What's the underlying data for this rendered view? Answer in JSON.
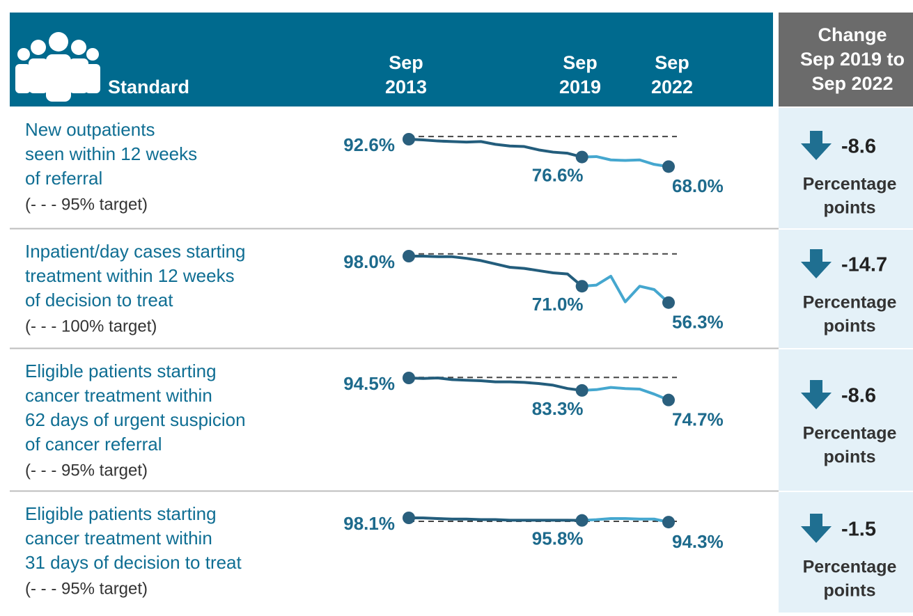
{
  "header": {
    "standard": "Standard",
    "columns": [
      {
        "month": "Sep",
        "year": "2013"
      },
      {
        "month": "Sep",
        "year": "2019"
      },
      {
        "month": "Sep",
        "year": "2022"
      }
    ],
    "change": [
      "Change",
      "Sep 2019 to",
      "Sep 2022"
    ]
  },
  "rows": [
    {
      "label": [
        "New outpatients",
        "seen within 12 weeks",
        "of referral"
      ],
      "target_note": "(- - - 95% target)",
      "change": -8.6,
      "change_unit": [
        "Percentage",
        "points"
      ],
      "chart_data": {
        "type": "line",
        "target": 95,
        "series": [
          {
            "color": "#235d7c",
            "values": [
              92.6,
              92,
              91,
              90.5,
              90,
              90.5,
              88,
              86.5,
              86,
              83,
              81,
              80,
              76.6,
              null,
              null,
              null,
              null,
              null,
              null
            ],
            "value_labels": [
              "92.6%",
              null,
              null,
              null,
              null,
              null,
              null,
              null,
              null,
              null,
              null,
              null,
              "76.6%",
              null,
              null,
              null,
              null,
              null,
              null
            ]
          },
          {
            "color": "#45a7cf",
            "values": [
              null,
              null,
              null,
              null,
              null,
              null,
              null,
              null,
              null,
              null,
              null,
              null,
              76.6,
              77,
              74,
              73.5,
              74,
              70,
              68.0
            ],
            "value_labels": [
              null,
              null,
              null,
              null,
              null,
              null,
              null,
              null,
              null,
              null,
              null,
              null,
              null,
              null,
              null,
              null,
              null,
              null,
              "68.0%"
            ]
          }
        ]
      }
    },
    {
      "label": [
        "Inpatient/day cases starting",
        "treatment within 12 weeks",
        "of decision to treat"
      ],
      "target_note": "(- - - 100% target)",
      "change": -14.7,
      "change_unit": [
        "Percentage",
        "points"
      ],
      "chart_data": {
        "type": "line",
        "target": 100,
        "series": [
          {
            "color": "#235d7c",
            "values": [
              98.0,
              98,
              97.5,
              97.5,
              96,
              94,
              91,
              88,
              87,
              85,
              83,
              82,
              71.0,
              null,
              null,
              null,
              null,
              null,
              null
            ],
            "value_labels": [
              "98.0%",
              null,
              null,
              null,
              null,
              null,
              null,
              null,
              null,
              null,
              null,
              null,
              "71.0%",
              null,
              null,
              null,
              null,
              null,
              null
            ]
          },
          {
            "color": "#45a7cf",
            "values": [
              null,
              null,
              null,
              null,
              null,
              null,
              null,
              null,
              null,
              null,
              null,
              null,
              71.0,
              72,
              80,
              57,
              71,
              68,
              56.3
            ],
            "value_labels": [
              null,
              null,
              null,
              null,
              null,
              null,
              null,
              null,
              null,
              null,
              null,
              null,
              null,
              null,
              null,
              null,
              null,
              null,
              "56.3%"
            ]
          }
        ]
      }
    },
    {
      "label": [
        "Eligible patients starting",
        "cancer treatment within",
        "62 days of urgent suspicion",
        "of cancer referral"
      ],
      "target_note": "(- - - 95% target)",
      "change": -8.6,
      "change_unit": [
        "Percentage",
        "points"
      ],
      "chart_data": {
        "type": "line",
        "target": 95,
        "series": [
          {
            "color": "#235d7c",
            "values": [
              94.5,
              94,
              94.5,
              93,
              92.5,
              92,
              91,
              91,
              90.5,
              89.5,
              88,
              85,
              83.3,
              null,
              null,
              null,
              null,
              null,
              null
            ],
            "value_labels": [
              "94.5%",
              null,
              null,
              null,
              null,
              null,
              null,
              null,
              null,
              null,
              null,
              null,
              "83.3%",
              null,
              null,
              null,
              null,
              null,
              null
            ]
          },
          {
            "color": "#45a7cf",
            "values": [
              null,
              null,
              null,
              null,
              null,
              null,
              null,
              null,
              null,
              null,
              null,
              null,
              83.3,
              84,
              86,
              85,
              84.5,
              80,
              74.7
            ],
            "value_labels": [
              null,
              null,
              null,
              null,
              null,
              null,
              null,
              null,
              null,
              null,
              null,
              null,
              null,
              null,
              null,
              null,
              null,
              null,
              "74.7%"
            ]
          }
        ]
      }
    },
    {
      "label": [
        "Eligible patients starting",
        "cancer treatment within",
        "31 days of decision to treat"
      ],
      "target_note": "(- - - 95% target)",
      "change": -1.5,
      "change_unit": [
        "Percentage",
        "points"
      ],
      "chart_data": {
        "type": "line",
        "target": 95,
        "series": [
          {
            "color": "#235d7c",
            "values": [
              98.1,
              98,
              97.5,
              97,
              97,
              96.5,
              96.5,
              96,
              96,
              96,
              96,
              96,
              95.8,
              null,
              null,
              null,
              null,
              null,
              null
            ],
            "value_labels": [
              "98.1%",
              null,
              null,
              null,
              null,
              null,
              null,
              null,
              null,
              null,
              null,
              null,
              "95.8%",
              null,
              null,
              null,
              null,
              null,
              null
            ]
          },
          {
            "color": "#45a7cf",
            "values": [
              null,
              null,
              null,
              null,
              null,
              null,
              null,
              null,
              null,
              null,
              null,
              null,
              95.8,
              96.5,
              97.5,
              97.5,
              97,
              97,
              94.3
            ],
            "value_labels": [
              null,
              null,
              null,
              null,
              null,
              null,
              null,
              null,
              null,
              null,
              null,
              null,
              null,
              null,
              null,
              null,
              null,
              null,
              "94.3%"
            ]
          }
        ]
      }
    }
  ]
}
